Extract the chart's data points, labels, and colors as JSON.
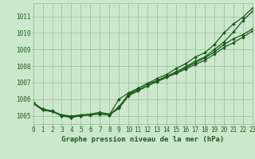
{
  "title": "Graphe pression niveau de la mer (hPa)",
  "xlabel_hours": [
    0,
    1,
    2,
    3,
    4,
    5,
    6,
    7,
    8,
    9,
    10,
    11,
    12,
    13,
    14,
    15,
    16,
    17,
    18,
    19,
    20,
    21,
    22,
    23
  ],
  "ylim": [
    1004.5,
    1011.8
  ],
  "yticks": [
    1005,
    1006,
    1007,
    1008,
    1009,
    1010,
    1011
  ],
  "background_color": "#cce8cc",
  "grid_color": "#99bb99",
  "line_color": "#1a5c1a",
  "line1": [
    1005.8,
    1005.4,
    1005.3,
    1005.0,
    1004.9,
    1005.0,
    1005.1,
    1005.2,
    1005.1,
    1005.5,
    1006.3,
    1006.65,
    1006.95,
    1007.25,
    1007.5,
    1007.85,
    1008.15,
    1008.55,
    1008.8,
    1009.3,
    1010.0,
    1010.55,
    1010.95,
    1011.5
  ],
  "line2": [
    1005.75,
    1005.4,
    1005.25,
    1005.0,
    1004.9,
    1005.0,
    1005.05,
    1005.15,
    1005.05,
    1005.45,
    1006.2,
    1006.5,
    1006.8,
    1007.1,
    1007.4,
    1007.65,
    1007.95,
    1008.3,
    1008.55,
    1009.0,
    1009.45,
    1010.05,
    1010.75,
    1011.3
  ],
  "line3": [
    1005.75,
    1005.35,
    1005.25,
    1005.05,
    1004.98,
    1005.05,
    1005.08,
    1005.1,
    1005.05,
    1005.55,
    1006.25,
    1006.55,
    1006.82,
    1007.05,
    1007.32,
    1007.55,
    1007.82,
    1008.1,
    1008.35,
    1008.72,
    1009.12,
    1009.42,
    1009.75,
    1010.12
  ],
  "line4": [
    1005.75,
    1005.35,
    1005.25,
    1005.05,
    1004.95,
    1005.05,
    1005.08,
    1005.12,
    1005.06,
    1006.0,
    1006.38,
    1006.65,
    1006.93,
    1007.12,
    1007.38,
    1007.62,
    1007.9,
    1008.2,
    1008.5,
    1008.85,
    1009.3,
    1009.65,
    1009.9,
    1010.25
  ],
  "marker": "D",
  "marker_size": 2.0,
  "linewidth": 0.9,
  "font_color": "#1a5c1a",
  "tick_fontsize": 5.5,
  "label_fontsize": 6.5
}
